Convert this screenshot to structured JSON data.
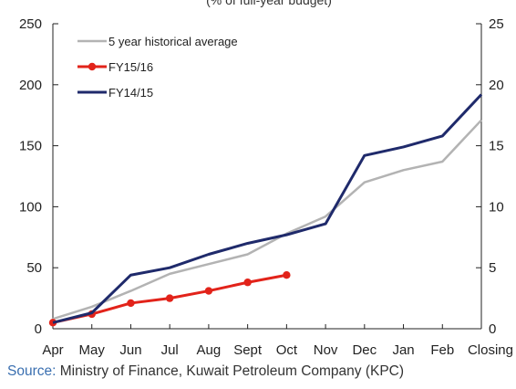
{
  "chart_data": {
    "type": "line",
    "subtitle": "(% of full-year budget)",
    "categories": [
      "Apr",
      "May",
      "Jun",
      "Jul",
      "Aug",
      "Sept",
      "Oct",
      "Nov",
      "Dec",
      "Jan",
      "Feb",
      "Closing"
    ],
    "y_left": {
      "ylim": [
        0,
        250
      ],
      "ticks": [
        "0",
        "50",
        "100",
        "150",
        "200",
        "250"
      ]
    },
    "y_right": {
      "ylim": [
        0,
        25
      ],
      "ticks": [
        "0",
        "5",
        "10",
        "15",
        "20",
        "25"
      ]
    },
    "grid": false,
    "legend_position": "top-left",
    "series": [
      {
        "name": "5 year historical average",
        "color": "#b3b3b3",
        "marker": false,
        "values": [
          8,
          18,
          31,
          45,
          53,
          61,
          78,
          92,
          120,
          130,
          137,
          171
        ]
      },
      {
        "name": "FY15/16",
        "color": "#e2231a",
        "marker": true,
        "values": [
          5,
          12,
          21,
          25,
          31,
          38,
          44,
          null,
          null,
          null,
          null,
          null
        ]
      },
      {
        "name": "FY14/15",
        "color": "#1f2a6b",
        "marker": false,
        "values": [
          5,
          13,
          44,
          50,
          61,
          70,
          77,
          86,
          142,
          149,
          158,
          192
        ]
      }
    ]
  },
  "source": {
    "label": "Source:",
    "text": "Ministry of Finance, Kuwait Petroleum Company (KPC)"
  }
}
